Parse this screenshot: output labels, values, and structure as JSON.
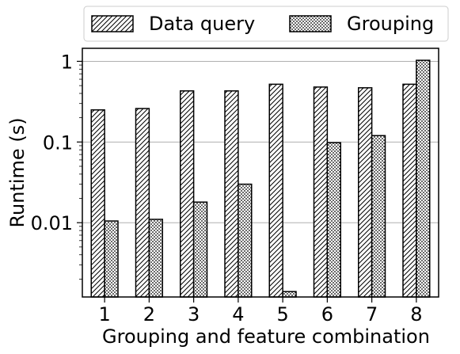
{
  "chart_data": {
    "type": "bar",
    "title": "",
    "xlabel": "Grouping and feature combination",
    "ylabel": "Runtime (s)",
    "yscale": "log",
    "ylim": [
      0.0012,
      1.45
    ],
    "yticks": [
      0.01,
      0.1,
      1
    ],
    "ytick_labels": [
      "0.01",
      "0.1",
      "1"
    ],
    "categories": [
      "1",
      "2",
      "3",
      "4",
      "5",
      "6",
      "7",
      "8"
    ],
    "grid": "horizontal at major ticks",
    "legend_position": "top, above plot",
    "series": [
      {
        "name": "Data query",
        "pattern": "diagonal-hatch",
        "values": [
          0.25,
          0.26,
          0.43,
          0.43,
          0.52,
          0.48,
          0.47,
          0.52
        ]
      },
      {
        "name": "Grouping",
        "pattern": "dots",
        "values": [
          0.0105,
          0.011,
          0.018,
          0.03,
          0.0014,
          0.098,
          0.12,
          1.03
        ]
      }
    ],
    "colors": {
      "bar_fill": "#ffffff",
      "bar_edge": "#000000",
      "grid": "#b0b0b0"
    }
  }
}
